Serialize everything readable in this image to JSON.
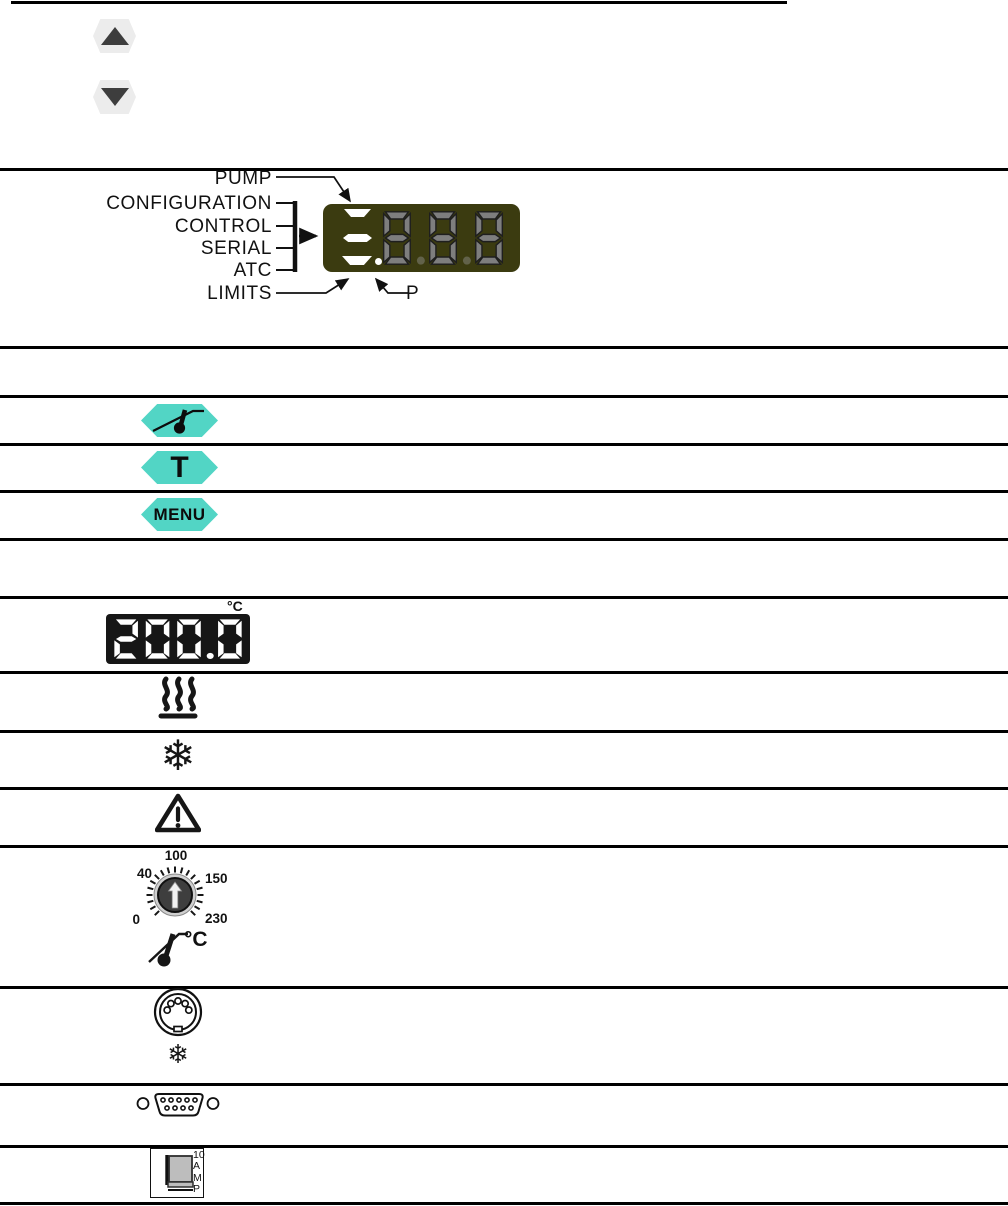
{
  "page": {
    "background": "#ffffff",
    "rule_color": "#000000"
  },
  "nav_buttons": {
    "up_icon": "up-arrow",
    "down_icon": "down-arrow",
    "key_color": "#ececec",
    "arrow_color": "#3d3d3d"
  },
  "indicator_diagram": {
    "labels": [
      "PUMP",
      "CONFIGURATION",
      "CONTROL",
      "SERIAL",
      "ATC",
      "LIMITS"
    ],
    "p_label": "P",
    "display": {
      "value": "8.8.8",
      "bg": "#3b3b10",
      "segment_color": "#7e7e7e",
      "segment_outline": "#1f1f1f",
      "dp_color": "#62624a",
      "indicator_color": "#ffffff"
    }
  },
  "menu_keys": {
    "key_color": "#52d5c5",
    "probe_key_icon": "thermometer-probe",
    "t_key_label": "T",
    "menu_key_label": "MENU"
  },
  "temperature_display": {
    "unit": "°C",
    "value": "200.0",
    "bg": "#161616",
    "segment_color": "#ffffff"
  },
  "status_icons": {
    "heating_icon": "heating-steam",
    "cooling_icon": "snowflake",
    "alarm_icon": "warning-triangle",
    "snowflake_glyph": "❄"
  },
  "dial": {
    "scale_labels": [
      "0",
      "40",
      "100",
      "150",
      "230"
    ],
    "unit": "°C",
    "probe_icon": "thermometer-probe",
    "knob_color": "#3e3e3e",
    "ring_color": "#cfcfcf",
    "pointer_color": "#f2f2f2",
    "tick_color": "#161616",
    "tick_start_deg": -135,
    "tick_end_deg": 135,
    "tick_step_deg": 15
  },
  "connectors": {
    "din_icon": "din-5-connector",
    "din_snowflake_glyph": "❄",
    "serial_icon": "db9-serial-connector",
    "fuse": {
      "lines": [
        "10",
        "A",
        "M",
        "P"
      ]
    }
  }
}
